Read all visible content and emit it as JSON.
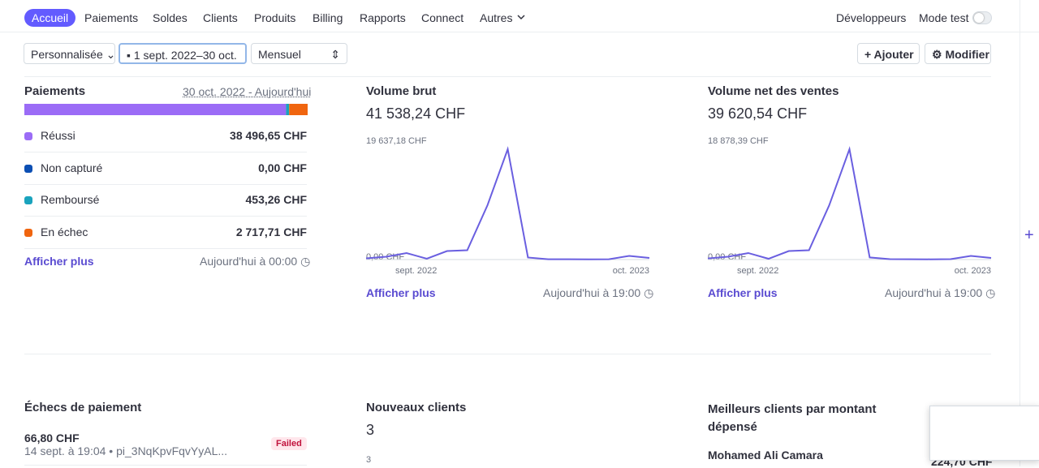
{
  "nav": {
    "items": [
      "Accueil",
      "Paiements",
      "Soldes",
      "Clients",
      "Produits",
      "Billing",
      "Rapports",
      "Connect",
      "Autres"
    ],
    "right": [
      "Développeurs",
      "Mode test"
    ]
  },
  "toolbar": {
    "period": "Personnalisée",
    "dates": "1 sept. 2022–30 oct.",
    "interval": "Mensuel",
    "buttons": [
      "Ajouter",
      "Modifier"
    ]
  },
  "payments": {
    "title": "Paiements",
    "range": "30 oct. 2022 - Aujourd'hui",
    "rows": [
      {
        "label": "Réussi",
        "amount": 38496.65,
        "amount_label": "38 496,65 CHF",
        "color": "#9b6cf6"
      },
      {
        "label": "Non capturé",
        "amount": 0,
        "amount_label": "0,00 CHF",
        "color": "#0c4fb3"
      },
      {
        "label": "Remboursé",
        "amount": 453.26,
        "amount_label": "453,26 CHF",
        "color": "#1aa3bd"
      },
      {
        "label": "En échec",
        "amount": 2717.71,
        "amount_label": "2 717,71 CHF",
        "color": "#f0650f"
      }
    ],
    "link": "Afficher plus",
    "updated": "Aujourd'hui à 00:00"
  },
  "gross": {
    "title": "Volume brut",
    "total": "41 538,24 CHF",
    "chart": {
      "type": "line",
      "color": "#6a5fe0",
      "values": [
        200,
        480,
        1100,
        140,
        1440,
        1580,
        9200,
        18680,
        350,
        60,
        50,
        40,
        60,
        620,
        280
      ],
      "ylim": [
        0,
        19637.18
      ],
      "yticks": [
        {
          "value": 0,
          "label": "0,00 CHF"
        },
        {
          "value": 19637.18,
          "label": "19 637,18 CHF"
        }
      ],
      "x_labels": [
        "sept. 2022",
        "oct. 2023"
      ]
    },
    "link": "Afficher plus",
    "updated": "Aujourd'hui à 19:00"
  },
  "net": {
    "title": "Volume net des ventes",
    "total": "39 620,54 CHF",
    "chart": {
      "type": "line",
      "color": "#6a5fe0",
      "values": [
        190,
        460,
        1060,
        130,
        1380,
        1520,
        8840,
        17960,
        340,
        60,
        50,
        40,
        60,
        600,
        270
      ],
      "ylim": [
        0,
        18878.39
      ],
      "yticks": [
        {
          "value": 0,
          "label": "0,00 CHF"
        },
        {
          "value": 18878.39,
          "label": "18 878,39 CHF"
        }
      ],
      "x_labels": [
        "sept. 2022",
        "oct. 2023"
      ]
    },
    "link": "Afficher plus",
    "updated": "Aujourd'hui à 19:00"
  },
  "failures": {
    "title": "Échecs de paiement",
    "amount": "66,80 CHF",
    "detail": "14 sept. à 19:04 • pi_3NqKpvFqvYyAL...",
    "badge": "Failed"
  },
  "new_clients": {
    "title": "Nouveaux clients",
    "value": "3",
    "tick": "3"
  },
  "top_clients": {
    "title": "Meilleurs clients par montant dépensé",
    "name": "Mohamed Ali Camara",
    "amount": "224,70 CHF"
  }
}
